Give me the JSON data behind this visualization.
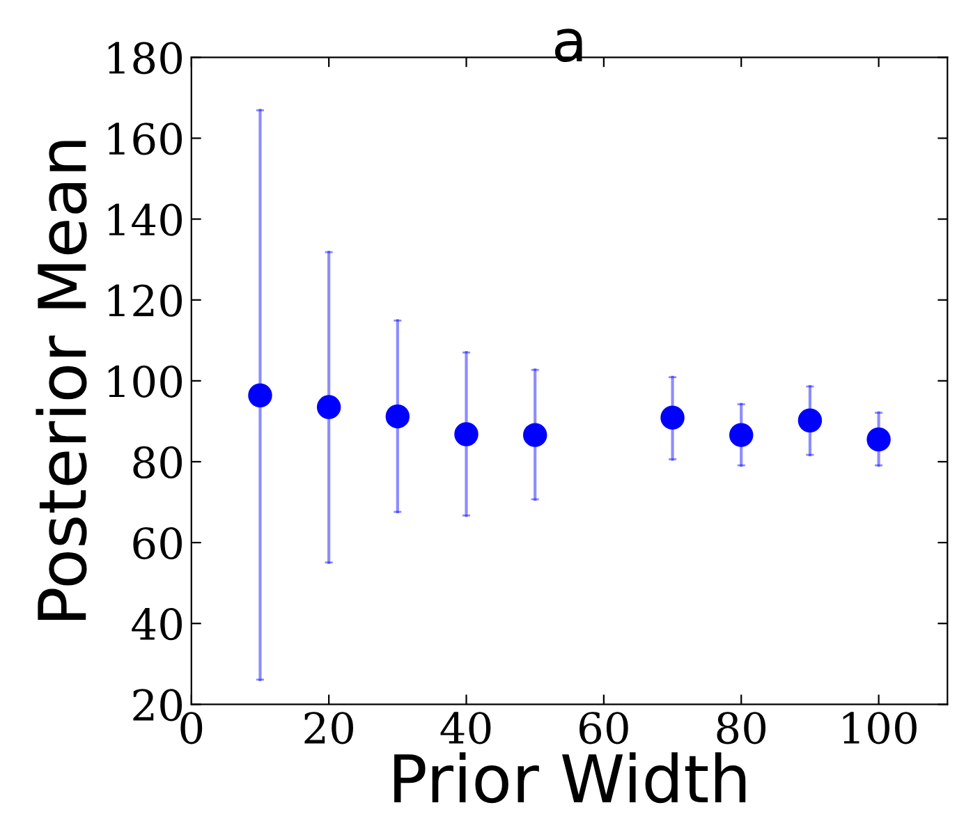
{
  "chart_data": {
    "type": "scatter",
    "title": "a",
    "xlabel": "Prior Width",
    "ylabel": "Posterior Mean",
    "x": [
      10,
      20,
      30,
      40,
      50,
      70,
      80,
      90,
      100
    ],
    "series": [
      {
        "color": "#0000ff",
        "values": [
          96.4,
          93.5,
          91.2,
          86.8,
          86.6,
          90.9,
          86.6,
          90.2,
          85.5
        ],
        "errors": [
          [
            26.1,
            166.9
          ],
          [
            55.1,
            131.8
          ],
          [
            67.6,
            114.9
          ],
          [
            66.7,
            107.0
          ],
          [
            70.7,
            102.7
          ],
          [
            80.6,
            100.9
          ],
          [
            79.1,
            94.2
          ],
          [
            81.7,
            98.6
          ],
          [
            79.1,
            92.1
          ]
        ]
      }
    ],
    "xlim": [
      0,
      110
    ],
    "ylim": [
      20,
      180
    ],
    "xticks": [
      0,
      20,
      40,
      60,
      80,
      100
    ],
    "yticks": [
      20,
      40,
      60,
      80,
      100,
      120,
      140,
      160,
      180
    ],
    "marker": "circle",
    "grid": false,
    "legend": false
  }
}
